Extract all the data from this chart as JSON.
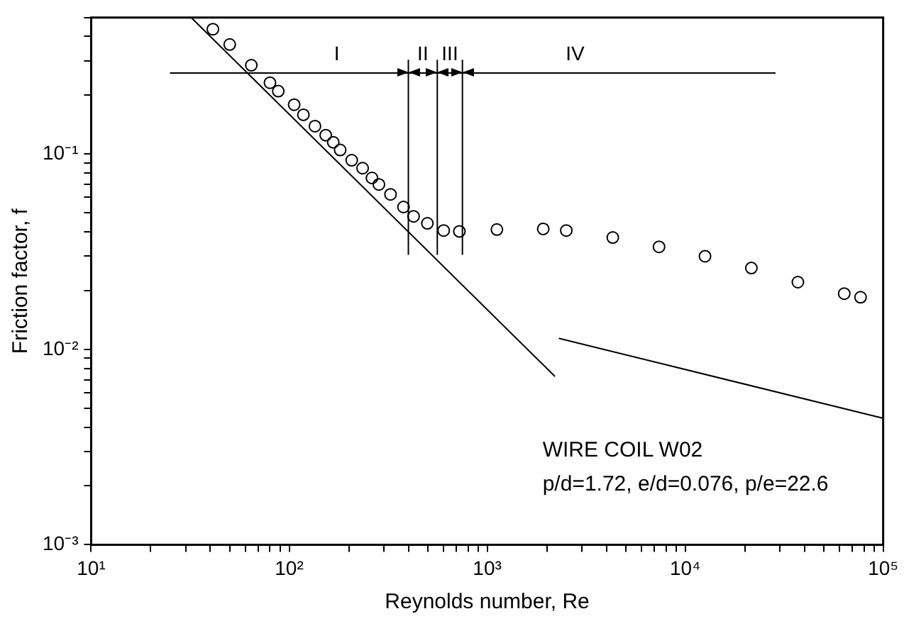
{
  "chart_data": {
    "type": "scatter",
    "xlabel": "Reynolds number, Re",
    "ylabel": "Friction factor, f",
    "log": "xy",
    "grid": false,
    "legend": false,
    "marker": "circle",
    "xlim": [
      10,
      100000
    ],
    "ylim": [
      0.001,
      0.5
    ],
    "xticks": [
      {
        "value": 10,
        "label": "10¹"
      },
      {
        "value": 20,
        "label": null
      },
      {
        "value": 30,
        "label": null
      },
      {
        "value": 40,
        "label": null
      },
      {
        "value": 50,
        "label": null
      },
      {
        "value": 60,
        "label": null
      },
      {
        "value": 70,
        "label": null
      },
      {
        "value": 80,
        "label": null
      },
      {
        "value": 90,
        "label": null
      },
      {
        "value": 100,
        "label": "10²"
      },
      {
        "value": 200,
        "label": null
      },
      {
        "value": 300,
        "label": null
      },
      {
        "value": 400,
        "label": null
      },
      {
        "value": 500,
        "label": null
      },
      {
        "value": 600,
        "label": null
      },
      {
        "value": 700,
        "label": null
      },
      {
        "value": 800,
        "label": null
      },
      {
        "value": 900,
        "label": null
      },
      {
        "value": 1000,
        "label": "10³"
      },
      {
        "value": 2000,
        "label": null
      },
      {
        "value": 3000,
        "label": null
      },
      {
        "value": 4000,
        "label": null
      },
      {
        "value": 5000,
        "label": null
      },
      {
        "value": 6000,
        "label": null
      },
      {
        "value": 7000,
        "label": null
      },
      {
        "value": 8000,
        "label": null
      },
      {
        "value": 9000,
        "label": null
      },
      {
        "value": 10000,
        "label": "10⁴"
      },
      {
        "value": 20000,
        "label": null
      },
      {
        "value": 30000,
        "label": null
      },
      {
        "value": 40000,
        "label": null
      },
      {
        "value": 50000,
        "label": null
      },
      {
        "value": 60000,
        "label": null
      },
      {
        "value": 70000,
        "label": null
      },
      {
        "value": 80000,
        "label": null
      },
      {
        "value": 90000,
        "label": null
      },
      {
        "value": 100000,
        "label": "10⁵"
      }
    ],
    "yticks": [
      {
        "value": 0.001,
        "label": "10⁻³"
      },
      {
        "value": 0.002,
        "label": null
      },
      {
        "value": 0.003,
        "label": null
      },
      {
        "value": 0.004,
        "label": null
      },
      {
        "value": 0.005,
        "label": null
      },
      {
        "value": 0.006,
        "label": null
      },
      {
        "value": 0.007,
        "label": null
      },
      {
        "value": 0.008,
        "label": null
      },
      {
        "value": 0.009,
        "label": null
      },
      {
        "value": 0.01,
        "label": "10⁻²"
      },
      {
        "value": 0.02,
        "label": null
      },
      {
        "value": 0.03,
        "label": null
      },
      {
        "value": 0.04,
        "label": null
      },
      {
        "value": 0.05,
        "label": null
      },
      {
        "value": 0.06,
        "label": null
      },
      {
        "value": 0.07,
        "label": null
      },
      {
        "value": 0.08,
        "label": null
      },
      {
        "value": 0.09,
        "label": null
      },
      {
        "value": 0.1,
        "label": "10⁻¹"
      },
      {
        "value": 0.2,
        "label": null
      },
      {
        "value": 0.3,
        "label": null
      },
      {
        "value": 0.4,
        "label": null
      },
      {
        "value": 0.5,
        "label": null
      }
    ],
    "series": [
      {
        "color": "#000000",
        "x": [
          41.2,
          50.1,
          64.4,
          80.0,
          88.1,
          106,
          118,
          135,
          153,
          167,
          181,
          207,
          235,
          262,
          284,
          325,
          378,
          425,
          499,
          603,
          724,
          1120,
          1920,
          2510,
          4310,
          7380,
          12600,
          21600,
          37100,
          63600,
          76900
        ],
        "values": [
          0.436,
          0.364,
          0.285,
          0.232,
          0.21,
          0.179,
          0.159,
          0.139,
          0.125,
          0.115,
          0.105,
          0.093,
          0.0847,
          0.0755,
          0.0699,
          0.0622,
          0.0536,
          0.048,
          0.0442,
          0.0406,
          0.0402,
          0.0411,
          0.0414,
          0.0406,
          0.0374,
          0.0335,
          0.03,
          0.0261,
          0.0221,
          0.0193,
          0.0185
        ]
      },
      {
        "type": "line",
        "color": "#000000",
        "marker": "none",
        "x": [
          32,
          2200
        ],
        "values": [
          0.5,
          0.00727
        ]
      },
      {
        "type": "line",
        "color": "#000000",
        "marker": "none",
        "x": [
          2300,
          100000
        ],
        "values": [
          0.0114,
          0.00444
        ]
      },
      {
        "type": "line",
        "color": "#000000",
        "marker": "none",
        "x": [
          25,
          28600
        ],
        "values": [
          0.26,
          0.26
        ]
      }
    ],
    "ref_lines": [
      {
        "axis": "x",
        "value": 400
      },
      {
        "axis": "x",
        "value": 560
      },
      {
        "axis": "x",
        "value": 750
      }
    ],
    "annotations": [
      "I",
      "II",
      "III",
      "IV",
      "WIRE COIL W02",
      "p/d=1.72, e/d=0.076, p/e=22.6"
    ]
  }
}
